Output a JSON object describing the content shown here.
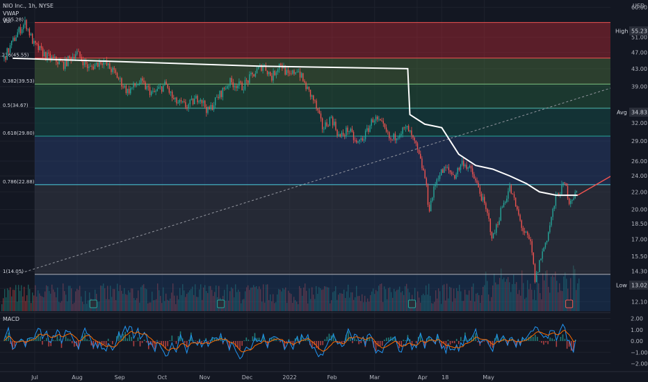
{
  "header": {
    "symbol_line": "NIO Inc., 1h, NYSE",
    "vwap_label": "VWAP",
    "vol_label": "Vol",
    "currency": "USD"
  },
  "macd": {
    "label": "MACD"
  },
  "badges": {
    "high_label": "High",
    "high_value": "55.23",
    "avg_label": "Avg",
    "avg_value": "34.83",
    "low_label": "Low",
    "low_value": "13.02"
  },
  "colors": {
    "bg": "#131722",
    "up": "#26a69a",
    "down": "#ef5350",
    "vwap": "#ffffff",
    "arrow": "#f05350",
    "macd_line": "#2196f3",
    "signal_line": "#ff6d00"
  },
  "chart_data": {
    "type": "line",
    "title": "NIO Inc., 1h, NYSE",
    "ylabel": "USD",
    "price_ticks": [
      60.0,
      55.23,
      51.0,
      47.0,
      43.0,
      39.0,
      34.83,
      32.0,
      29.0,
      26.0,
      24.0,
      22.0,
      20.0,
      18.5,
      17.0,
      15.5,
      14.3,
      13.02,
      12.1
    ],
    "price_tick_labels": [
      "60.00",
      "55.23",
      "51.00",
      "47.00",
      "43.00",
      "39.00",
      "34.83",
      "32.00",
      "29.00",
      "26.00",
      "24.00",
      "22.00",
      "20.00",
      "18.50",
      "17.00",
      "15.50",
      "14.30",
      "13.02",
      "12.10"
    ],
    "ylim": [
      11.5,
      62
    ],
    "y_scale": "log",
    "x_labels": [
      "Jul",
      "Aug",
      "Sep",
      "Oct",
      "Nov",
      "Dec",
      "2022",
      "Feb",
      "Mar",
      "Apr",
      "18",
      "May"
    ],
    "fib_levels": [
      {
        "label": "0(55.28)",
        "ratio": 0,
        "price": 55.28
      },
      {
        "label": "0.236(45.55)",
        "ratio": 0.236,
        "price": 45.55
      },
      {
        "label": "0.382(39.53)",
        "ratio": 0.382,
        "price": 39.53
      },
      {
        "label": "0.5(34.67)",
        "ratio": 0.5,
        "price": 34.67
      },
      {
        "label": "0.618(29.80)",
        "ratio": 0.618,
        "price": 29.8
      },
      {
        "label": "0.786(22.88)",
        "ratio": 0.786,
        "price": 22.88
      },
      {
        "label": "1(14.05)",
        "ratio": 1,
        "price": 14.05
      }
    ],
    "price_series": [
      {
        "t": 0,
        "p": 45.5
      },
      {
        "t": 0.3,
        "p": 52
      },
      {
        "t": 0.5,
        "p": 55.28
      },
      {
        "t": 0.7,
        "p": 49
      },
      {
        "t": 1.0,
        "p": 46
      },
      {
        "t": 1.4,
        "p": 44
      },
      {
        "t": 1.7,
        "p": 47
      },
      {
        "t": 2.0,
        "p": 43
      },
      {
        "t": 2.3,
        "p": 45
      },
      {
        "t": 2.6,
        "p": 42
      },
      {
        "t": 2.9,
        "p": 38
      },
      {
        "t": 3.2,
        "p": 40
      },
      {
        "t": 3.5,
        "p": 37.5
      },
      {
        "t": 3.8,
        "p": 39.5
      },
      {
        "t": 4.0,
        "p": 36
      },
      {
        "t": 4.3,
        "p": 35
      },
      {
        "t": 4.6,
        "p": 37
      },
      {
        "t": 4.8,
        "p": 34
      },
      {
        "t": 5.0,
        "p": 36.5
      },
      {
        "t": 5.3,
        "p": 40
      },
      {
        "t": 5.6,
        "p": 39
      },
      {
        "t": 5.9,
        "p": 42
      },
      {
        "t": 6.1,
        "p": 44
      },
      {
        "t": 6.3,
        "p": 41
      },
      {
        "t": 6.5,
        "p": 44.5
      },
      {
        "t": 6.7,
        "p": 41
      },
      {
        "t": 6.9,
        "p": 43
      },
      {
        "t": 7.1,
        "p": 39
      },
      {
        "t": 7.3,
        "p": 36
      },
      {
        "t": 7.5,
        "p": 31
      },
      {
        "t": 7.7,
        "p": 33
      },
      {
        "t": 7.9,
        "p": 29.5
      },
      {
        "t": 8.1,
        "p": 31
      },
      {
        "t": 8.3,
        "p": 28.5
      },
      {
        "t": 8.5,
        "p": 30
      },
      {
        "t": 8.7,
        "p": 33
      },
      {
        "t": 8.9,
        "p": 31.5
      },
      {
        "t": 9.1,
        "p": 29
      },
      {
        "t": 9.3,
        "p": 30.5
      },
      {
        "t": 9.5,
        "p": 31
      },
      {
        "t": 9.7,
        "p": 28
      },
      {
        "t": 9.9,
        "p": 24
      },
      {
        "t": 10.0,
        "p": 20
      },
      {
        "t": 10.2,
        "p": 24
      },
      {
        "t": 10.4,
        "p": 25
      },
      {
        "t": 10.6,
        "p": 24
      },
      {
        "t": 10.8,
        "p": 26
      },
      {
        "t": 11.0,
        "p": 24.5
      },
      {
        "t": 11.2,
        "p": 22
      },
      {
        "t": 11.4,
        "p": 19
      },
      {
        "t": 11.5,
        "p": 17
      },
      {
        "t": 11.7,
        "p": 20
      },
      {
        "t": 11.9,
        "p": 22.5
      },
      {
        "t": 12.0,
        "p": 21
      },
      {
        "t": 12.2,
        "p": 18
      },
      {
        "t": 12.4,
        "p": 16.5
      },
      {
        "t": 12.5,
        "p": 13.5
      },
      {
        "t": 12.6,
        "p": 15
      },
      {
        "t": 12.8,
        "p": 17.5
      },
      {
        "t": 12.9,
        "p": 19.5
      },
      {
        "t": 13.0,
        "p": 21.5
      },
      {
        "t": 13.2,
        "p": 23
      },
      {
        "t": 13.3,
        "p": 21
      },
      {
        "t": 13.5,
        "p": 22
      }
    ],
    "vwap_series": [
      {
        "t": 0.2,
        "p": 45.5
      },
      {
        "t": 3.0,
        "p": 44.6
      },
      {
        "t": 6.0,
        "p": 43.6
      },
      {
        "t": 9.5,
        "p": 43.0
      },
      {
        "t": 9.55,
        "p": 33.5
      },
      {
        "t": 9.9,
        "p": 31.8
      },
      {
        "t": 10.3,
        "p": 31.2
      },
      {
        "t": 10.7,
        "p": 27.0
      },
      {
        "t": 11.1,
        "p": 25.4
      },
      {
        "t": 11.5,
        "p": 24.9
      },
      {
        "t": 11.9,
        "p": 24.0
      },
      {
        "t": 12.3,
        "p": 23.0
      },
      {
        "t": 12.6,
        "p": 22.0
      },
      {
        "t": 13.0,
        "p": 21.6
      },
      {
        "t": 13.5,
        "p": 21.6
      }
    ],
    "projection_arrow": {
      "from": {
        "t": 13.5,
        "p": 21.6
      },
      "to": {
        "t": 16.8,
        "p": 33.5
      }
    },
    "trend_line": {
      "from": {
        "t": 0.3,
        "p": 14.05
      },
      "to": {
        "t": 19.2,
        "p": 55.28
      }
    },
    "macd_ticks": [
      2.0,
      1.0,
      0.0,
      -1.0,
      -2.0
    ],
    "macd_tick_labels": [
      "2.00",
      "1.00",
      "0.00",
      "−1.00",
      "−2.00"
    ],
    "macd_ylim": [
      -2.4,
      2.4
    ]
  }
}
